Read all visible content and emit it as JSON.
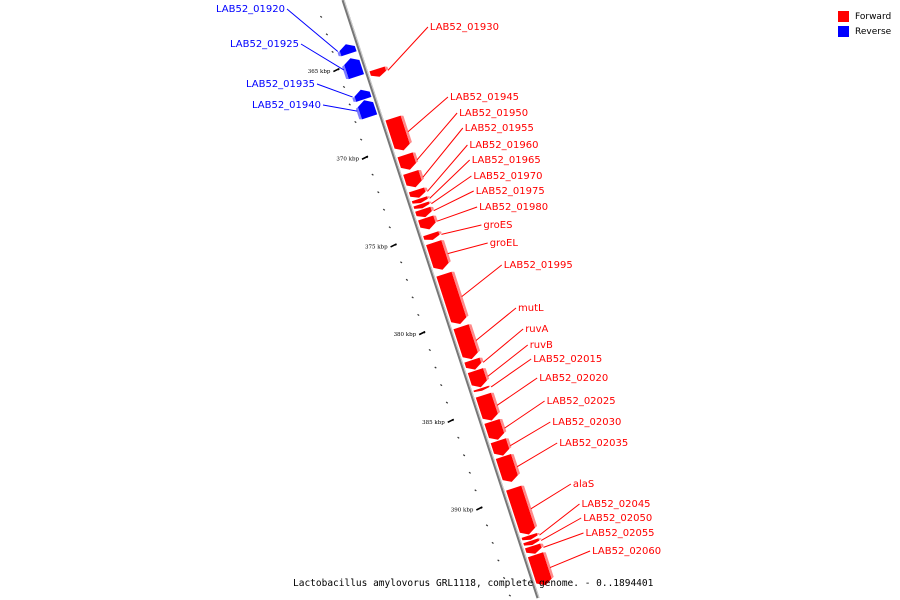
{
  "colors": {
    "forward": "#ff0000",
    "reverse": "#0000ff",
    "backbone": "#888888"
  },
  "legend": [
    {
      "key": "forward",
      "label": "Forward"
    },
    {
      "key": "reverse",
      "label": "Reverse"
    }
  ],
  "caption": "Lactobacillus amylovorus GRL1118, complete genome. - 0..1894401",
  "scale": [
    {
      "kbp": 365,
      "label": "365 kbp"
    },
    {
      "kbp": 370,
      "label": "370 kbp"
    },
    {
      "kbp": 375,
      "label": "375 kbp"
    },
    {
      "kbp": 380,
      "label": "380 kbp"
    },
    {
      "kbp": 385,
      "label": "385 kbp"
    },
    {
      "kbp": 390,
      "label": "390 kbp"
    }
  ],
  "features": [
    {
      "name": "LAB52_01920",
      "strand": "reverse",
      "start_kbp": 363.8,
      "end_kbp": 364.4
    },
    {
      "name": "LAB52_01925",
      "strand": "reverse",
      "start_kbp": 364.6,
      "end_kbp": 365.7
    },
    {
      "name": "LAB52_01930",
      "strand": "forward",
      "start_kbp": 365.6,
      "end_kbp": 366.1
    },
    {
      "name": "LAB52_01935",
      "strand": "reverse",
      "start_kbp": 366.4,
      "end_kbp": 367.0
    },
    {
      "name": "LAB52_01940",
      "strand": "reverse",
      "start_kbp": 367.0,
      "end_kbp": 368.0
    },
    {
      "name": "LAB52_01945",
      "strand": "forward",
      "start_kbp": 368.4,
      "end_kbp": 370.3
    },
    {
      "name": "LAB52_01950",
      "strand": "forward",
      "start_kbp": 370.5,
      "end_kbp": 371.4
    },
    {
      "name": "LAB52_01955",
      "strand": "forward",
      "start_kbp": 371.5,
      "end_kbp": 372.4
    },
    {
      "name": "LAB52_01960",
      "strand": "forward",
      "start_kbp": 372.5,
      "end_kbp": 373.0
    },
    {
      "name": "LAB52_01965",
      "strand": "forward",
      "start_kbp": 373.0,
      "end_kbp": 373.3
    },
    {
      "name": "LAB52_01970",
      "strand": "forward",
      "start_kbp": 373.3,
      "end_kbp": 373.6
    },
    {
      "name": "LAB52_01975",
      "strand": "forward",
      "start_kbp": 373.6,
      "end_kbp": 374.1
    },
    {
      "name": "LAB52_01980",
      "strand": "forward",
      "start_kbp": 374.1,
      "end_kbp": 374.8
    },
    {
      "name": "groES",
      "strand": "forward",
      "start_kbp": 375.0,
      "end_kbp": 375.4
    },
    {
      "name": "groEL",
      "strand": "forward",
      "start_kbp": 375.5,
      "end_kbp": 377.1
    },
    {
      "name": "LAB52_01995",
      "strand": "forward",
      "start_kbp": 377.3,
      "end_kbp": 380.2
    },
    {
      "name": "mutL",
      "strand": "forward",
      "start_kbp": 380.3,
      "end_kbp": 382.2
    },
    {
      "name": "ruvA",
      "strand": "forward",
      "start_kbp": 382.2,
      "end_kbp": 382.8
    },
    {
      "name": "ruvB",
      "strand": "forward",
      "start_kbp": 382.8,
      "end_kbp": 383.8
    },
    {
      "name": "LAB52_02015",
      "strand": "forward",
      "start_kbp": 383.8,
      "end_kbp": 384.0
    },
    {
      "name": "LAB52_02020",
      "strand": "forward",
      "start_kbp": 384.2,
      "end_kbp": 385.7
    },
    {
      "name": "LAB52_02025",
      "strand": "forward",
      "start_kbp": 385.7,
      "end_kbp": 386.8
    },
    {
      "name": "LAB52_02030",
      "strand": "forward",
      "start_kbp": 386.8,
      "end_kbp": 387.7
    },
    {
      "name": "LAB52_02035",
      "strand": "forward",
      "start_kbp": 387.7,
      "end_kbp": 389.2
    },
    {
      "name": "alaS",
      "strand": "forward",
      "start_kbp": 389.5,
      "end_kbp": 392.2
    },
    {
      "name": "LAB52_02045",
      "strand": "forward",
      "start_kbp": 392.2,
      "end_kbp": 392.5
    },
    {
      "name": "LAB52_02050",
      "strand": "forward",
      "start_kbp": 392.5,
      "end_kbp": 392.8
    },
    {
      "name": "LAB52_02055",
      "strand": "forward",
      "start_kbp": 392.8,
      "end_kbp": 393.3
    },
    {
      "name": "LAB52_02060",
      "strand": "forward",
      "start_kbp": 393.3,
      "end_kbp": 395.1
    }
  ]
}
